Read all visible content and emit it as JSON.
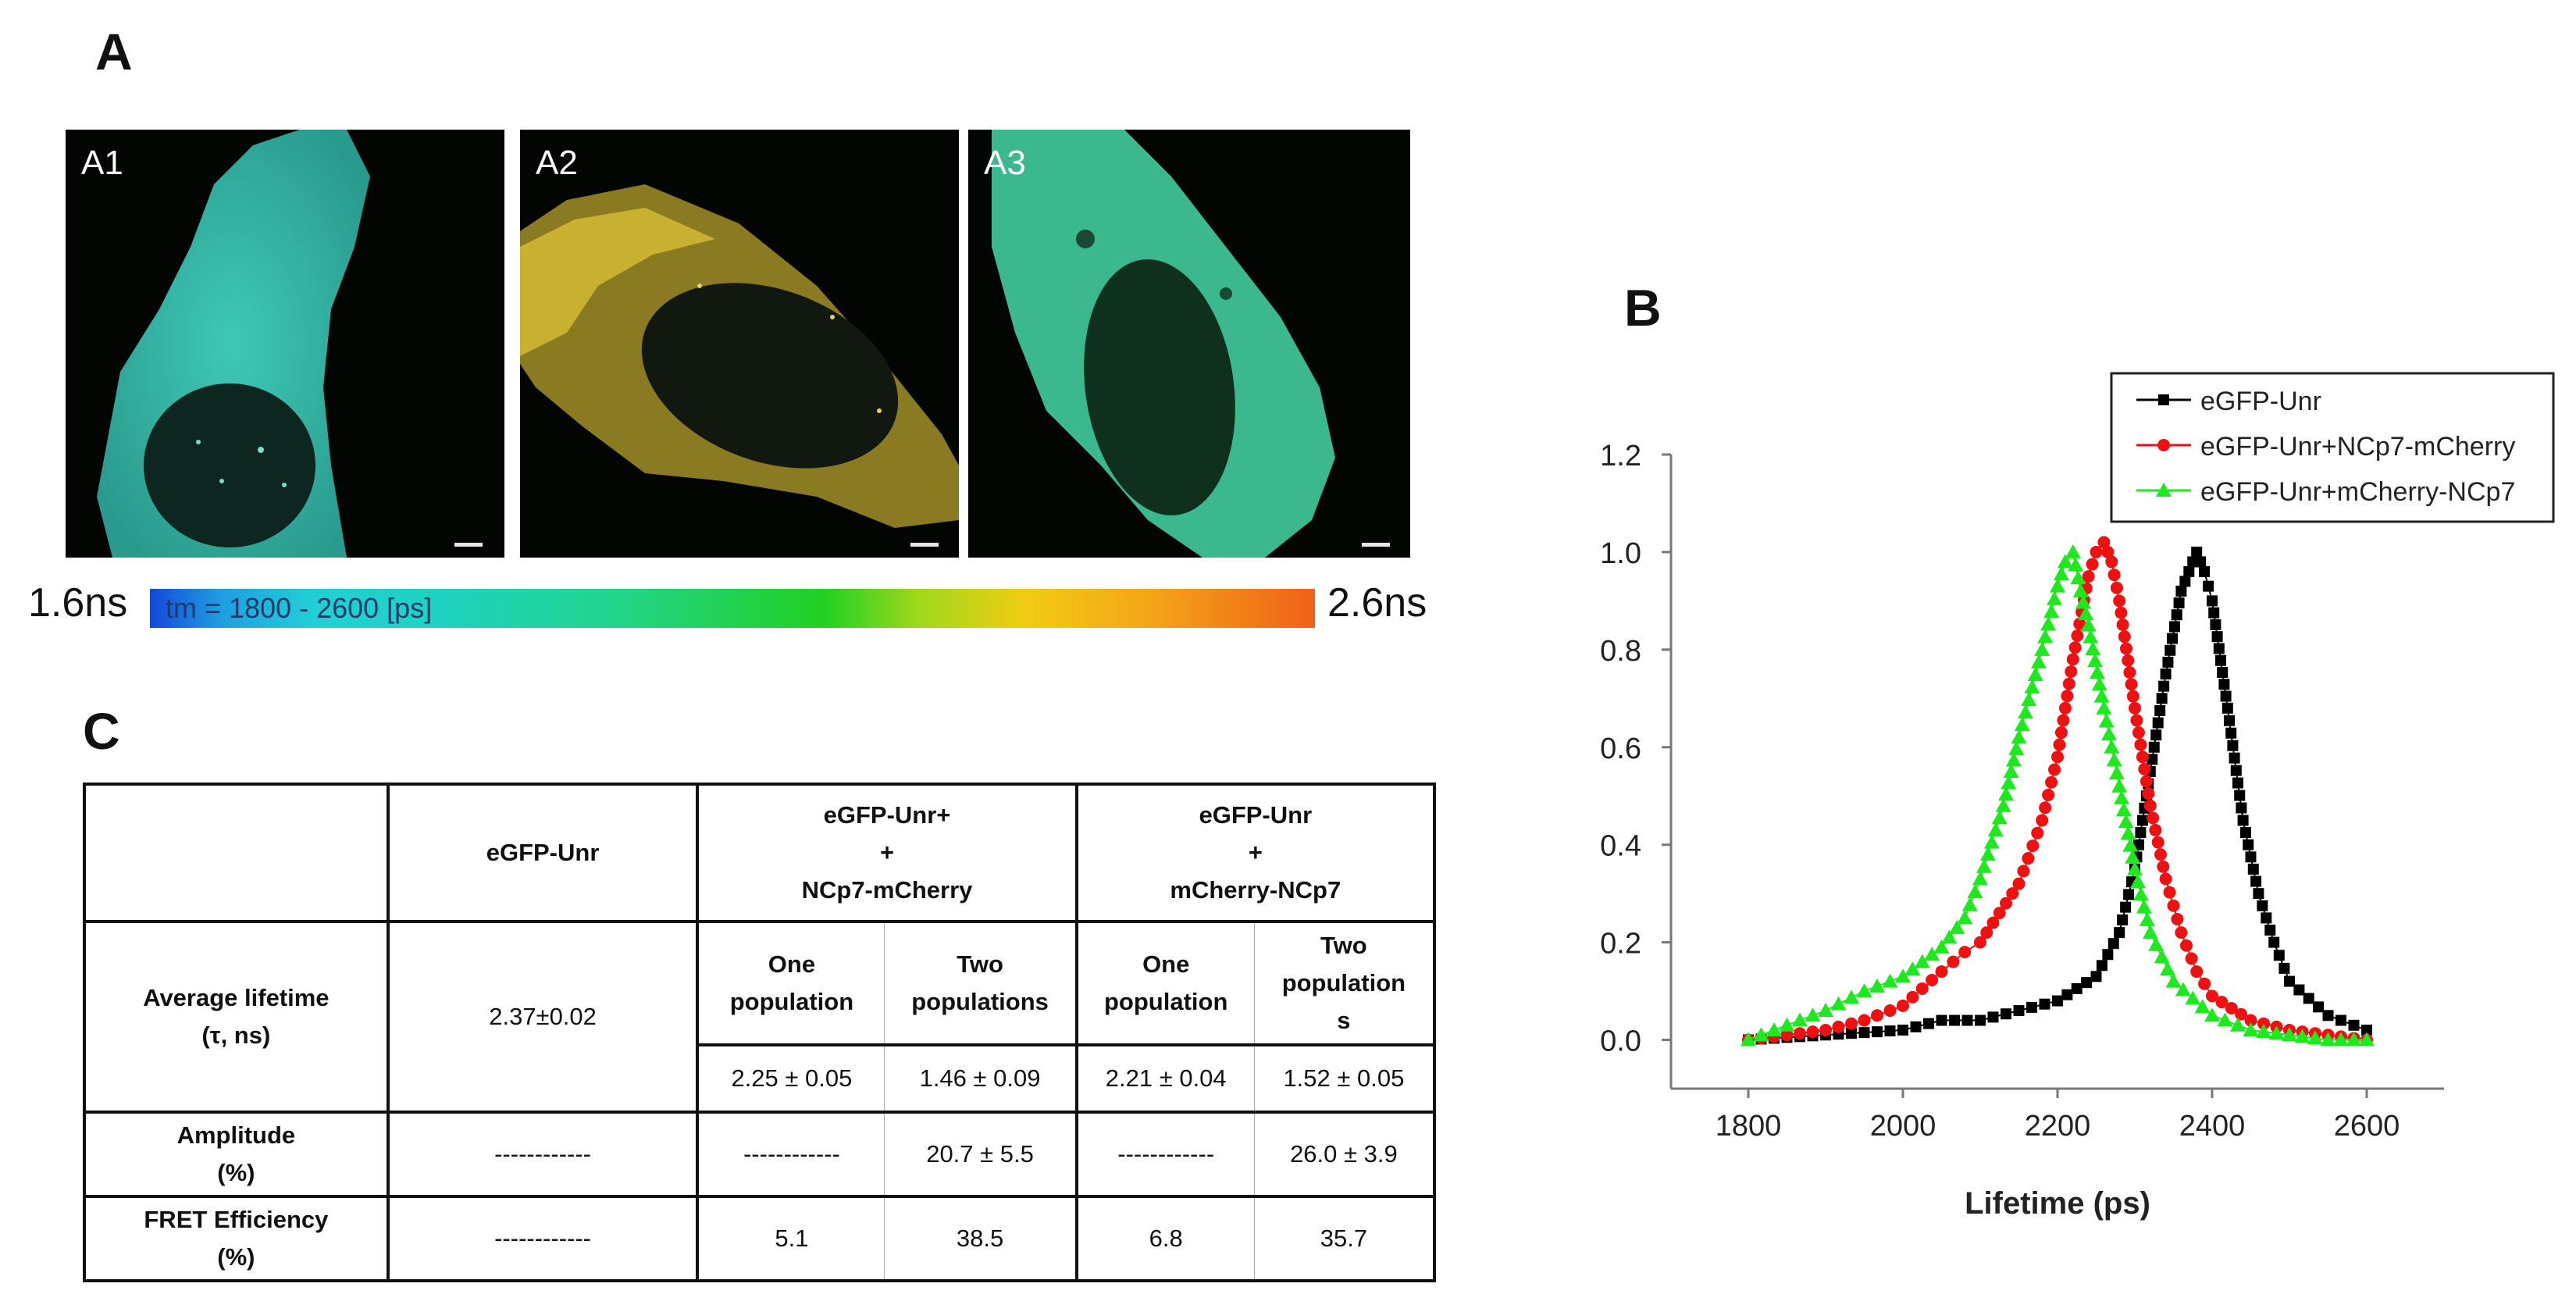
{
  "panels": {
    "A": "A",
    "B": "B",
    "C": "C"
  },
  "micrographs": [
    {
      "label": "A1"
    },
    {
      "label": "A2"
    },
    {
      "label": "A3"
    }
  ],
  "colorbar": {
    "left_label": "1.6ns",
    "right_label": "2.6ns",
    "inner_text": "tm = 1800 - 2600 [ps]"
  },
  "table": {
    "headers": {
      "col1": "eGFP-Unr",
      "col2": [
        "eGFP-Unr+",
        "+",
        "NCp7-mCherry"
      ],
      "col3": [
        "eGFP-Unr",
        "+",
        "mCherry-NCp7"
      ]
    },
    "sub_headers": {
      "one_pop": [
        "One",
        "population"
      ],
      "two_pop": [
        "Two",
        "populations"
      ],
      "one_pop_b": [
        "One",
        "population"
      ],
      "two_pop_b": [
        "Two",
        "population",
        "s"
      ]
    },
    "rows": {
      "avg_label": [
        "Average lifetime",
        "(τ, ns)"
      ],
      "avg_egfp": "2.37±0.02",
      "avg_values": [
        "2.25 ± 0.05",
        "1.46 ± 0.09",
        "2.21 ± 0.04",
        "1.52 ± 0.05"
      ],
      "amp_label": [
        "Amplitude",
        "(%)"
      ],
      "amp_values": [
        "------------",
        "------------",
        "20.7 ± 5.5",
        "------------",
        "26.0 ± 3.9"
      ],
      "fret_label": [
        "FRET Efficiency",
        "(%)"
      ],
      "fret_values": [
        "------------",
        "5.1",
        "38.5",
        "6.8",
        "35.7"
      ]
    }
  },
  "chart_data": {
    "type": "line",
    "xlabel": "Lifetime (ps)",
    "ylabel": "",
    "xlim": [
      1700,
      2700
    ],
    "ylim": [
      -0.1,
      1.2
    ],
    "xticks": [
      1800,
      2000,
      2200,
      2400,
      2600
    ],
    "yticks": [
      0.0,
      0.2,
      0.4,
      0.6,
      0.8,
      1.0,
      1.2
    ],
    "xtick_labels": [
      "1800",
      "2000",
      "2200",
      "2400",
      "2600"
    ],
    "ytick_labels": [
      "0.0",
      "0.2",
      "0.4",
      "0.6",
      "0.8",
      "1.0",
      "1.2"
    ],
    "legend_position": "top-right",
    "series": [
      {
        "name": "eGFP-Unr",
        "color": "#000000",
        "marker": "square",
        "x": [
          1800,
          1900,
          2000,
          2050,
          2100,
          2150,
          2200,
          2250,
          2280,
          2300,
          2320,
          2340,
          2360,
          2370,
          2380,
          2390,
          2400,
          2420,
          2440,
          2460,
          2480,
          2500,
          2550,
          2600
        ],
        "y": [
          0.0,
          0.01,
          0.02,
          0.04,
          0.04,
          0.06,
          0.08,
          0.13,
          0.22,
          0.35,
          0.55,
          0.75,
          0.92,
          0.96,
          1.0,
          0.96,
          0.9,
          0.68,
          0.45,
          0.3,
          0.2,
          0.12,
          0.05,
          0.02
        ]
      },
      {
        "name": "eGFP-Unr+NCp7-mCherry",
        "color": "#ee1111",
        "marker": "circle",
        "x": [
          1800,
          1900,
          1950,
          2000,
          2050,
          2080,
          2100,
          2150,
          2180,
          2200,
          2220,
          2240,
          2250,
          2260,
          2270,
          2280,
          2300,
          2320,
          2340,
          2360,
          2380,
          2400,
          2450,
          2500,
          2600
        ],
        "y": [
          0.0,
          0.02,
          0.04,
          0.07,
          0.14,
          0.18,
          0.2,
          0.32,
          0.45,
          0.58,
          0.78,
          0.95,
          1.0,
          1.02,
          0.98,
          0.9,
          0.68,
          0.48,
          0.33,
          0.22,
          0.14,
          0.09,
          0.04,
          0.02,
          0.0
        ]
      },
      {
        "name": "eGFP-Unr+mCherry-NCp7",
        "color": "#1ee81e",
        "marker": "triangle",
        "x": [
          1800,
          1850,
          1900,
          1950,
          2000,
          2050,
          2080,
          2100,
          2130,
          2150,
          2180,
          2200,
          2210,
          2220,
          2230,
          2240,
          2260,
          2280,
          2300,
          2320,
          2350,
          2400,
          2450,
          2500,
          2550,
          2600
        ],
        "y": [
          0.0,
          0.03,
          0.06,
          0.1,
          0.13,
          0.19,
          0.25,
          0.33,
          0.48,
          0.62,
          0.8,
          0.93,
          0.98,
          1.0,
          0.92,
          0.85,
          0.68,
          0.52,
          0.35,
          0.22,
          0.12,
          0.05,
          0.02,
          0.01,
          0.0,
          0.0
        ]
      }
    ]
  }
}
